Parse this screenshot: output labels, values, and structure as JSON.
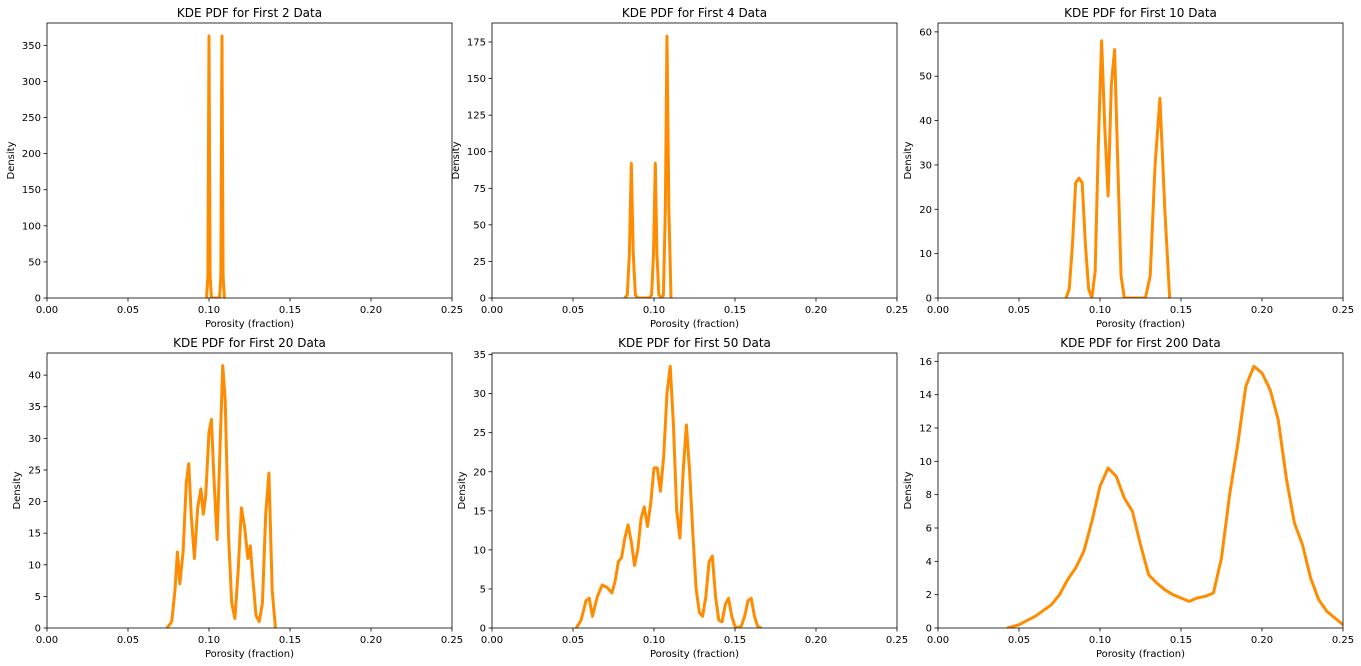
{
  "chart_data": [
    {
      "type": "line",
      "title": "KDE PDF for First 2 Data",
      "xlabel": "Porosity (fraction)",
      "ylabel": "Density",
      "xlim": [
        0,
        0.25
      ],
      "ylim": [
        0,
        381
      ],
      "xticks": [
        "0.00",
        "0.05",
        "0.10",
        "0.15",
        "0.20",
        "0.25"
      ],
      "yticks": [
        "0",
        "50",
        "100",
        "150",
        "200",
        "250",
        "300",
        "350"
      ],
      "ytick_values": [
        0,
        50,
        100,
        150,
        200,
        250,
        300,
        350
      ],
      "color": "#ff8c00",
      "series": [
        {
          "x": [
            0.0985,
            0.0993,
            0.1,
            0.1007,
            0.1015,
            0.1065,
            0.1073,
            0.108,
            0.1087,
            0.1095
          ],
          "y": [
            0,
            30,
            363,
            30,
            0,
            0,
            30,
            363,
            30,
            0
          ]
        }
      ]
    },
    {
      "type": "line",
      "title": "KDE PDF for First 4 Data",
      "xlabel": "Porosity (fraction)",
      "ylabel": "Density",
      "xlim": [
        0,
        0.25
      ],
      "ylim": [
        0,
        188
      ],
      "xticks": [
        "0.00",
        "0.05",
        "0.10",
        "0.15",
        "0.20",
        "0.25"
      ],
      "yticks": [
        "0",
        "25",
        "50",
        "75",
        "100",
        "125",
        "150",
        "175"
      ],
      "ytick_values": [
        0,
        25,
        50,
        75,
        100,
        125,
        150,
        175
      ],
      "color": "#ff8c00",
      "series": [
        {
          "x": [
            0.082,
            0.0835,
            0.0848,
            0.086,
            0.0872,
            0.0885,
            0.09,
            0.097,
            0.0985,
            0.0997,
            0.1008,
            0.1018,
            0.103,
            0.105,
            0.1058,
            0.107,
            0.108,
            0.1092,
            0.1105
          ],
          "y": [
            0,
            2,
            30,
            92,
            30,
            2,
            0,
            0,
            2,
            30,
            92,
            30,
            2,
            0,
            2,
            60,
            179,
            60,
            0
          ]
        }
      ]
    },
    {
      "type": "line",
      "title": "KDE PDF for First 10 Data",
      "xlabel": "Porosity (fraction)",
      "ylabel": "Density",
      "xlim": [
        0,
        0.25
      ],
      "ylim": [
        0,
        62
      ],
      "xticks": [
        "0.00",
        "0.05",
        "0.10",
        "0.15",
        "0.20",
        "0.25"
      ],
      "yticks": [
        "0",
        "10",
        "20",
        "30",
        "40",
        "50",
        "60"
      ],
      "ytick_values": [
        0,
        10,
        20,
        30,
        40,
        50,
        60
      ],
      "color": "#ff8c00",
      "series": [
        {
          "x": [
            0.079,
            0.081,
            0.083,
            0.085,
            0.087,
            0.089,
            0.091,
            0.093,
            0.095,
            0.097,
            0.099,
            0.101,
            0.103,
            0.105,
            0.107,
            0.109,
            0.111,
            0.113,
            0.115,
            0.128,
            0.131,
            0.134,
            0.137,
            0.14,
            0.143
          ],
          "y": [
            0,
            2,
            12,
            26,
            27,
            26,
            12,
            2,
            0,
            6,
            35,
            58,
            38,
            23,
            48,
            56,
            30,
            5,
            0,
            0,
            5,
            30,
            45,
            20,
            0
          ]
        }
      ]
    },
    {
      "type": "line",
      "title": "KDE PDF for First 20 Data",
      "xlabel": "Porosity (fraction)",
      "ylabel": "Density",
      "xlim": [
        0,
        0.25
      ],
      "ylim": [
        0,
        43.5
      ],
      "xticks": [
        "0.00",
        "0.05",
        "0.10",
        "0.15",
        "0.20",
        "0.25"
      ],
      "yticks": [
        "0",
        "5",
        "10",
        "15",
        "20",
        "25",
        "30",
        "35",
        "40"
      ],
      "ytick_values": [
        0,
        5,
        10,
        15,
        20,
        25,
        30,
        35,
        40
      ],
      "color": "#ff8c00",
      "series": [
        {
          "x": [
            0.074,
            0.077,
            0.079,
            0.0805,
            0.082,
            0.084,
            0.086,
            0.0875,
            0.089,
            0.091,
            0.093,
            0.095,
            0.0965,
            0.098,
            0.1,
            0.1015,
            0.103,
            0.105,
            0.107,
            0.1085,
            0.11,
            0.112,
            0.114,
            0.116,
            0.118,
            0.12,
            0.122,
            0.124,
            0.1255,
            0.127,
            0.129,
            0.131,
            0.133,
            0.135,
            0.137,
            0.139,
            0.141
          ],
          "y": [
            0,
            1,
            6,
            12,
            7,
            12,
            23,
            26,
            18,
            11,
            19,
            22,
            18,
            21,
            31,
            33,
            24,
            14,
            30,
            41.5,
            36,
            15,
            4,
            1.5,
            9,
            19,
            16,
            11,
            13,
            8,
            2,
            1,
            4,
            18,
            24.5,
            6,
            0
          ]
        }
      ]
    },
    {
      "type": "line",
      "title": "KDE PDF for First 50 Data",
      "xlabel": "Porosity (fraction)",
      "ylabel": "Density",
      "xlim": [
        0,
        0.25
      ],
      "ylim": [
        0,
        35.2
      ],
      "xticks": [
        "0.00",
        "0.05",
        "0.10",
        "0.15",
        "0.20",
        "0.25"
      ],
      "yticks": [
        "0",
        "5",
        "10",
        "15",
        "20",
        "25",
        "30",
        "35"
      ],
      "ytick_values": [
        0,
        5,
        10,
        15,
        20,
        25,
        30,
        35
      ],
      "color": "#ff8c00",
      "series": [
        {
          "x": [
            0.052,
            0.055,
            0.058,
            0.06,
            0.062,
            0.065,
            0.068,
            0.071,
            0.074,
            0.076,
            0.078,
            0.08,
            0.082,
            0.084,
            0.086,
            0.088,
            0.09,
            0.092,
            0.094,
            0.096,
            0.098,
            0.1,
            0.102,
            0.104,
            0.106,
            0.108,
            0.11,
            0.112,
            0.114,
            0.116,
            0.118,
            0.12,
            0.122,
            0.124,
            0.126,
            0.128,
            0.13,
            0.132,
            0.134,
            0.136,
            0.138,
            0.14,
            0.142,
            0.144,
            0.146,
            0.148,
            0.15,
            0.152,
            0.154,
            0.156,
            0.158,
            0.16,
            0.162,
            0.164,
            0.166
          ],
          "y": [
            0,
            1,
            3.5,
            3.8,
            1.5,
            4,
            5.5,
            5.2,
            4.5,
            6,
            8.5,
            9,
            11.5,
            13.2,
            11,
            8,
            10,
            14,
            15.5,
            13,
            16,
            20.5,
            20.5,
            17.5,
            22,
            30,
            33.5,
            26,
            15,
            11.5,
            20,
            26,
            20,
            12,
            5,
            2,
            1.5,
            4,
            8.5,
            9.2,
            4,
            1,
            0.8,
            3,
            3.8,
            1.5,
            0.2,
            0,
            0.3,
            1.5,
            3.5,
            3.8,
            1.5,
            0.2,
            0
          ]
        }
      ]
    },
    {
      "type": "line",
      "title": "KDE PDF for First 200 Data",
      "xlabel": "Porosity (fraction)",
      "ylabel": "Density",
      "xlim": [
        0,
        0.25
      ],
      "ylim": [
        0,
        16.5
      ],
      "xticks": [
        "0.00",
        "0.05",
        "0.10",
        "0.15",
        "0.20",
        "0.25"
      ],
      "yticks": [
        "0",
        "2",
        "4",
        "6",
        "8",
        "10",
        "12",
        "14",
        "16"
      ],
      "ytick_values": [
        0,
        2,
        4,
        6,
        8,
        10,
        12,
        14,
        16
      ],
      "color": "#ff8c00",
      "series": [
        {
          "x": [
            0.043,
            0.05,
            0.06,
            0.07,
            0.075,
            0.08,
            0.085,
            0.09,
            0.095,
            0.1,
            0.105,
            0.11,
            0.115,
            0.12,
            0.125,
            0.13,
            0.135,
            0.14,
            0.145,
            0.15,
            0.155,
            0.16,
            0.165,
            0.17,
            0.175,
            0.18,
            0.185,
            0.19,
            0.195,
            0.2,
            0.205,
            0.21,
            0.215,
            0.22,
            0.225,
            0.23,
            0.235,
            0.24,
            0.245,
            0.25
          ],
          "y": [
            0,
            0.2,
            0.7,
            1.4,
            2.0,
            2.9,
            3.6,
            4.6,
            6.4,
            8.5,
            9.6,
            9.1,
            7.8,
            7.0,
            5.0,
            3.2,
            2.7,
            2.3,
            2.0,
            1.8,
            1.6,
            1.8,
            1.9,
            2.1,
            4.2,
            8.0,
            11.0,
            14.5,
            15.7,
            15.3,
            14.3,
            12.5,
            9.0,
            6.3,
            5.0,
            3.0,
            1.7,
            1.0,
            0.6,
            0.2
          ]
        }
      ]
    }
  ]
}
